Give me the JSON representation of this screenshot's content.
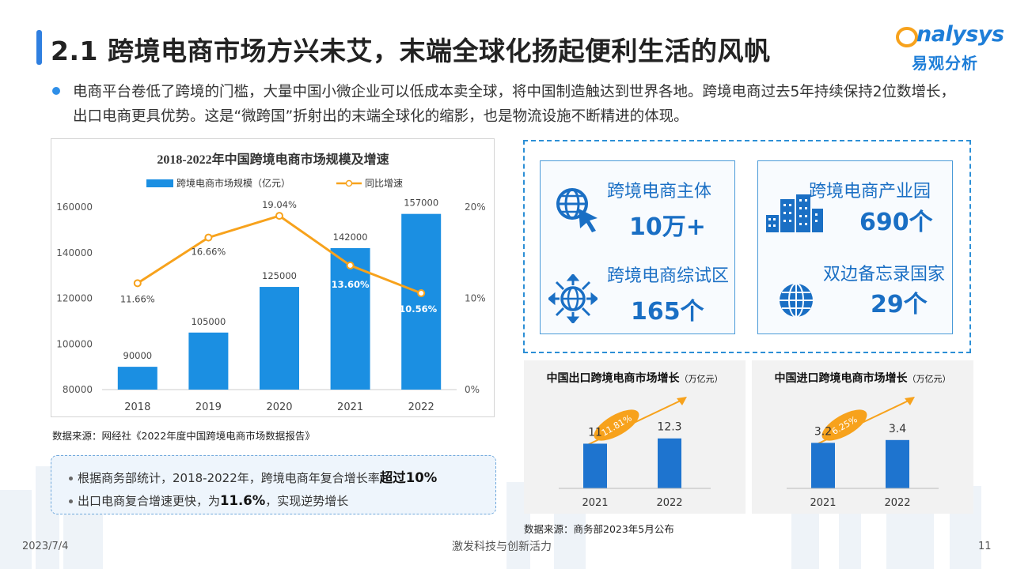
{
  "title": "2.1 跨境电商市场方兴未艾，末端全球化扬起便利生活的风帆",
  "logo": {
    "en": "nalysys",
    "cn": "易观分析"
  },
  "intro": "电商平台卷低了跨境的门槛，大量中国小微企业可以低成本卖全球，将中国制造触达到世界各地。跨境电商过去5年持续保持2位数增长，出口电商更具优势。这是“微跨国”折射出的末端全球化的缩影，也是物流设施不断精进的体现。",
  "chart_data": [
    {
      "type": "bar+line",
      "title": "2018-2022年中国跨境电商市场规模及增速",
      "categories": [
        "2018",
        "2019",
        "2020",
        "2021",
        "2022"
      ],
      "series": [
        {
          "name": "跨境电商市场规模（亿元）",
          "type": "bar",
          "axis": "left",
          "values": [
            90000,
            105000,
            125000,
            142000,
            157000
          ],
          "color": "#1b8fe2"
        },
        {
          "name": "同比增速",
          "type": "line",
          "axis": "right",
          "values": [
            11.66,
            16.66,
            19.04,
            13.6,
            10.56
          ],
          "labels": [
            "11.66%",
            "16.66%",
            "19.04%",
            "13.60%",
            "10.56%"
          ],
          "color": "#f7a21c"
        }
      ],
      "ylim_left": [
        80000,
        160000
      ],
      "yticks_left": [
        "160000",
        "140000",
        "120000",
        "100000",
        "80000"
      ],
      "ylim_right": [
        0,
        20
      ],
      "yticks_right": [
        "20%",
        "10%",
        "0%"
      ],
      "legend": "top"
    },
    {
      "type": "bar",
      "title": "中国出口跨境电商市场增长",
      "unit": "（万亿元）",
      "categories": [
        "2021",
        "2022"
      ],
      "values": [
        11,
        12.3
      ],
      "ylim": [
        0,
        14
      ],
      "growth": "11.81%",
      "color": "#1e74cf"
    },
    {
      "type": "bar",
      "title": "中国进口跨境电商市场增长",
      "unit": "（万亿元）",
      "categories": [
        "2021",
        "2022"
      ],
      "values": [
        3.2,
        3.4
      ],
      "ylim": [
        0,
        4
      ],
      "growth": "6.25%",
      "color": "#1e74cf"
    }
  ],
  "source1": "数据来源：网经社《2022年度中国跨境电商市场数据报告》",
  "notes": {
    "line1_pre": "根据商务部统计，2018-2022年，跨境电商年复合增长率",
    "line1_bold": "超过10%",
    "line2_pre": "出口电商复合增速更快，为",
    "line2_bold": "11.6%",
    "line2_post": "，实现逆势增长"
  },
  "stats": [
    {
      "label": "跨境电商主体",
      "value": "10万+",
      "icon": "globe-cursor-icon"
    },
    {
      "label": "跨境电商综试区",
      "value": "165个",
      "icon": "globe-arrows-icon"
    },
    {
      "label": "跨境电商产业园",
      "value": "690个",
      "icon": "buildings-icon"
    },
    {
      "label": "双边备忘录国家",
      "value": "29个",
      "icon": "globe-icon"
    }
  ],
  "source2": "数据来源：商务部2023年5月公布",
  "footer": {
    "date": "2023/7/4",
    "slogan": "激发科技与创新活力",
    "page": "11"
  }
}
